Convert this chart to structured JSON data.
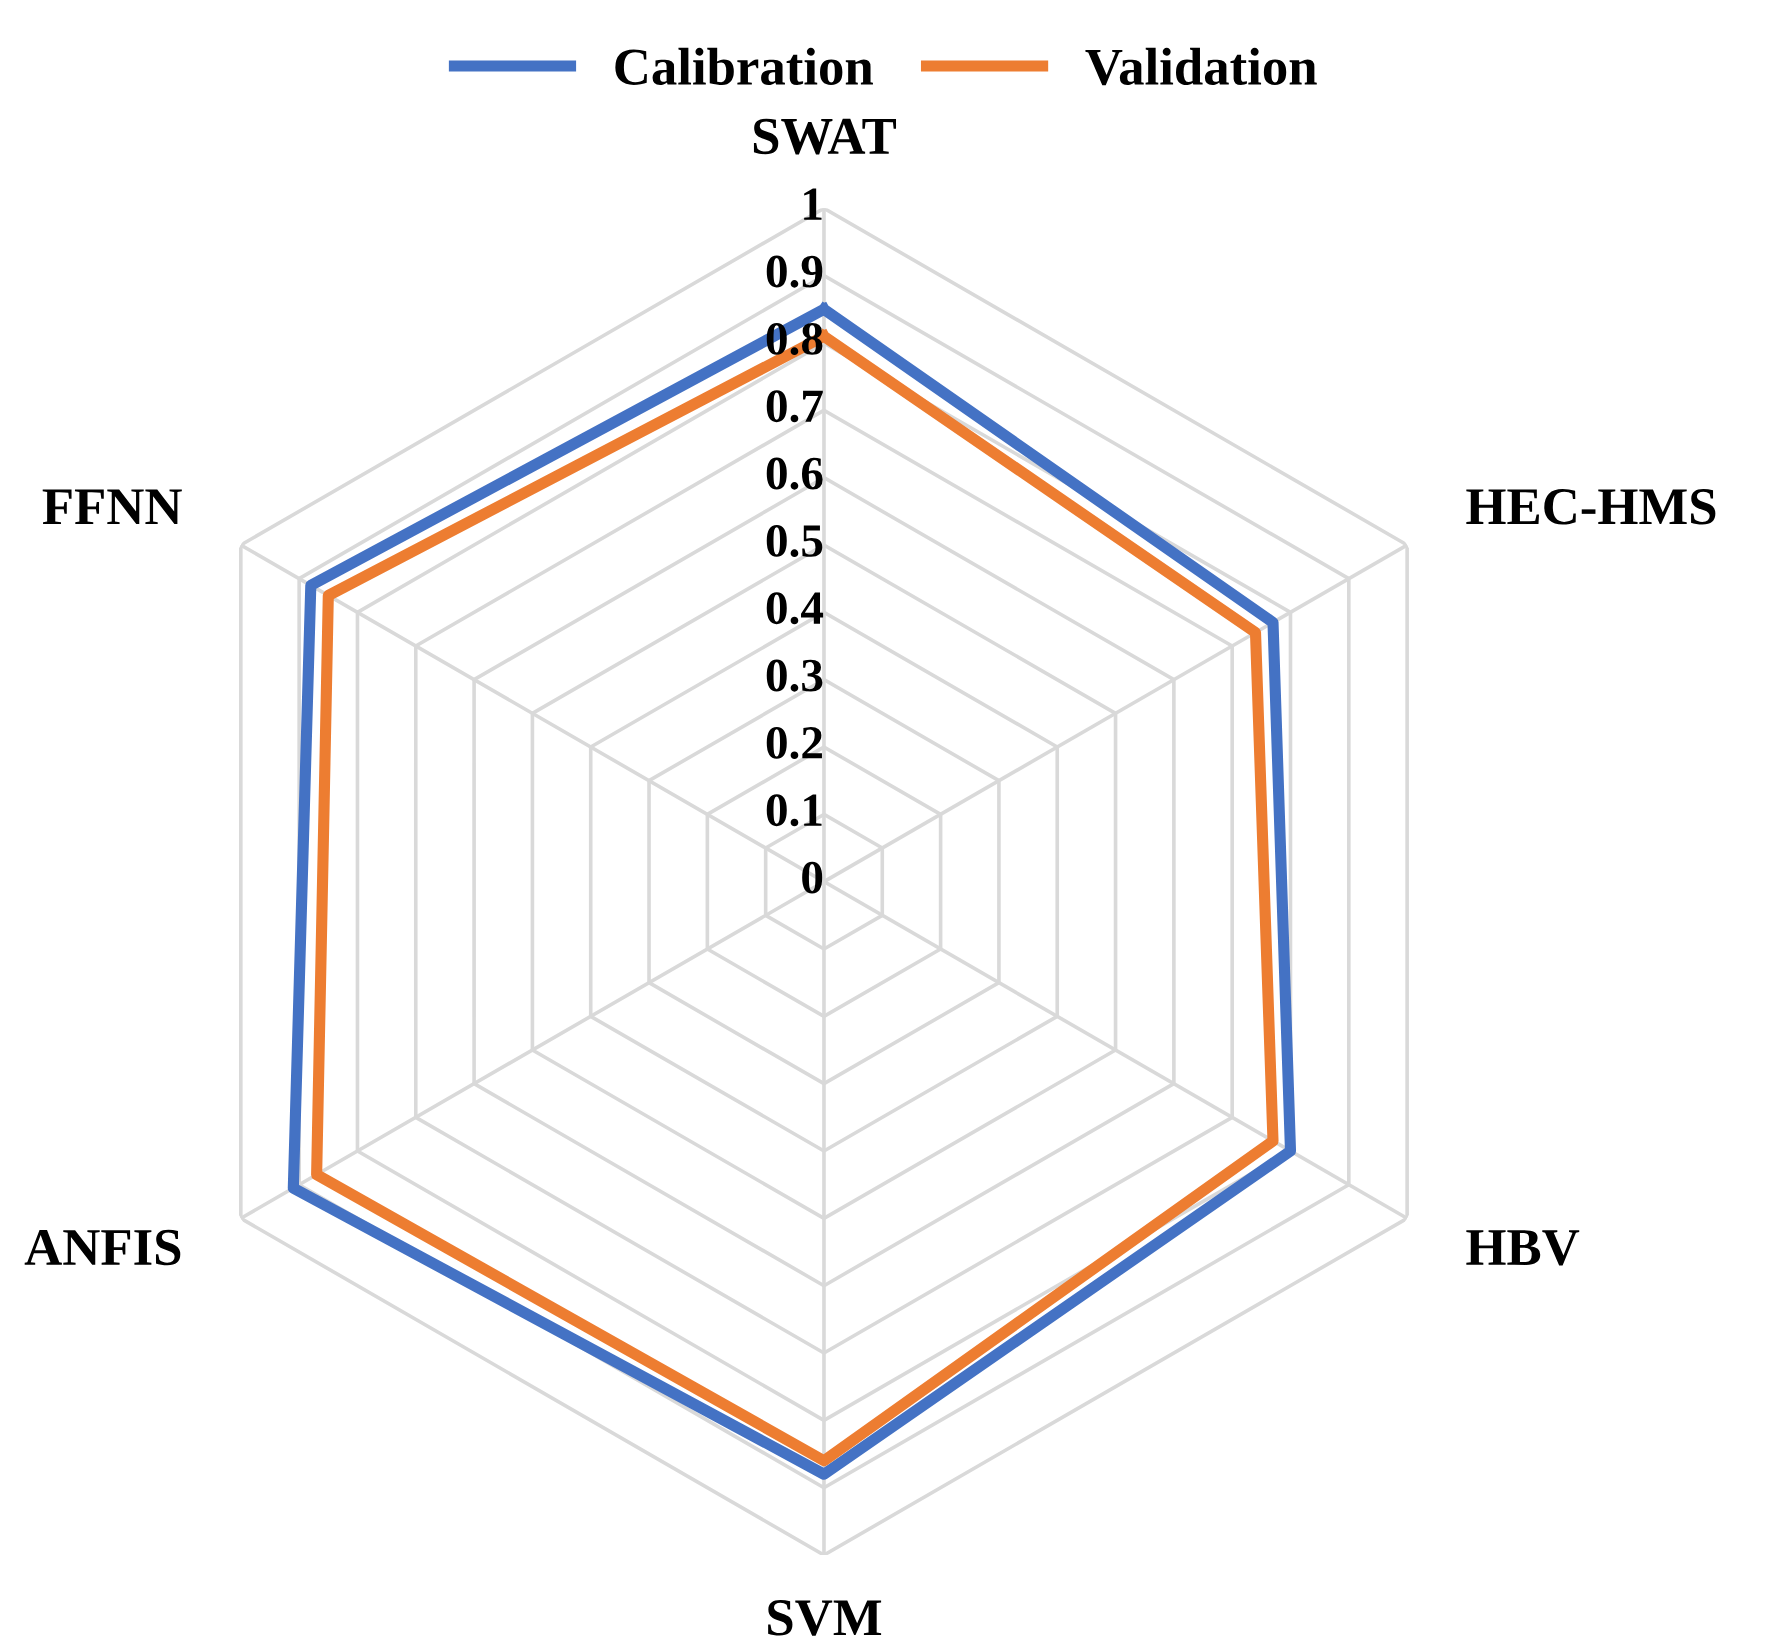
{
  "chart_data": {
    "type": "radar",
    "categories": [
      "SWAT",
      "HEC-HMS",
      "HBV",
      "SVM",
      "ANFIS",
      "FFNN"
    ],
    "series": [
      {
        "name": "Calibration",
        "color": "#4472c4",
        "values": [
          0.85,
          0.77,
          0.8,
          0.88,
          0.91,
          0.88
        ]
      },
      {
        "name": "Validation",
        "color": "#ed7d31",
        "values": [
          0.81,
          0.74,
          0.77,
          0.86,
          0.87,
          0.85
        ]
      }
    ],
    "ylim": [
      0,
      1
    ],
    "yticks": [
      0,
      0.1,
      0.2,
      0.3,
      0.4,
      0.5,
      0.6,
      0.7,
      0.8,
      0.9,
      1
    ],
    "grid": true,
    "legend": "top"
  }
}
